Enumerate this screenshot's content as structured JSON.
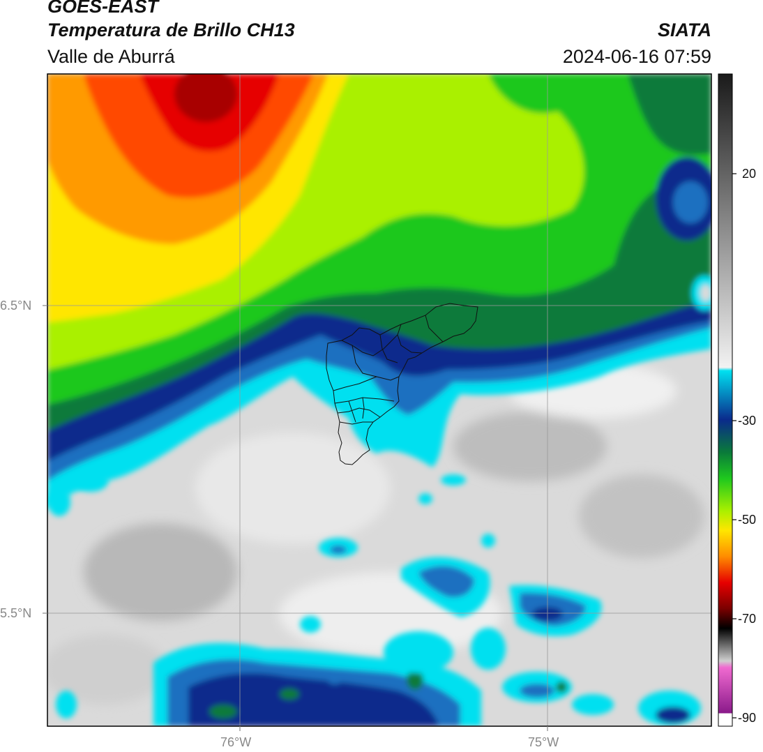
{
  "header": {
    "satellite": "GOES-EAST",
    "product": "Temperatura de Brillo CH13",
    "region": "Valle de Aburrá",
    "agency": "SIATA",
    "datetime": "2024-06-16 07:59"
  },
  "axes": {
    "lat_ticks": [
      "6.5°N",
      "5.5°N"
    ],
    "lon_ticks": [
      "76°W",
      "75°W"
    ]
  },
  "colorbar": {
    "tick_labels": [
      "20",
      "-30",
      "-50",
      "-70",
      "-90"
    ],
    "colors": {
      "gray_high": "#1a1a1a",
      "gray_low": "#f2f2f2",
      "cyan": "#00e6f0",
      "navy": "#0a2a8c",
      "dark_green": "#0a7a3a",
      "green": "#1ec81e",
      "lime": "#aaf000",
      "yellow": "#ffe600",
      "orange": "#ff8c00",
      "red": "#e60000",
      "dark_red": "#7a0000",
      "magenta": "#d050c0",
      "purple": "#8a1a8a"
    }
  }
}
